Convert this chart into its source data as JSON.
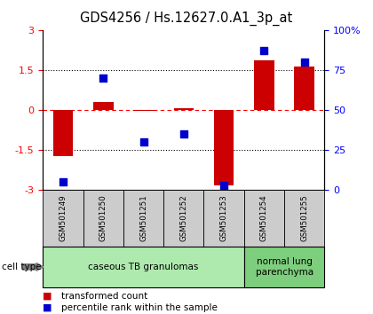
{
  "title": "GDS4256 / Hs.12627.0.A1_3p_at",
  "samples": [
    "GSM501249",
    "GSM501250",
    "GSM501251",
    "GSM501252",
    "GSM501253",
    "GSM501254",
    "GSM501255"
  ],
  "red_values": [
    -1.72,
    0.28,
    -0.05,
    0.05,
    -2.82,
    1.85,
    1.62
  ],
  "blue_values": [
    5,
    70,
    30,
    35,
    3,
    87,
    80
  ],
  "ylim_left": [
    -3,
    3
  ],
  "ylim_right": [
    0,
    100
  ],
  "yticks_left": [
    -3,
    -1.5,
    0,
    1.5,
    3
  ],
  "yticks_right": [
    0,
    25,
    50,
    75,
    100
  ],
  "ytick_labels_right": [
    "0",
    "25",
    "50",
    "75",
    "100%"
  ],
  "hlines": [
    1.5,
    0.0,
    -1.5
  ],
  "hline_styles": [
    "dotted",
    "dotted",
    "dotted"
  ],
  "hline_colors": [
    "black",
    "red",
    "black"
  ],
  "hline_dashes": [
    [
      4,
      3
    ],
    [
      4,
      3
    ],
    [
      4,
      3
    ]
  ],
  "cell_type_groups": [
    {
      "label": "caseous TB granulomas",
      "indices": [
        0,
        1,
        2,
        3,
        4
      ],
      "color": "#aeeaae"
    },
    {
      "label": "normal lung\nparenchyma",
      "indices": [
        5,
        6
      ],
      "color": "#7dce7d"
    }
  ],
  "bar_color": "#cc0000",
  "dot_color": "#0000cc",
  "bar_width": 0.5,
  "dot_size": 40,
  "tick_area_color": "#cccccc",
  "legend_red_label": "transformed count",
  "legend_blue_label": "percentile rank within the sample",
  "cell_type_label": "cell type",
  "title_fontsize": 10.5,
  "axis_fontsize": 8,
  "legend_fontsize": 7.5
}
